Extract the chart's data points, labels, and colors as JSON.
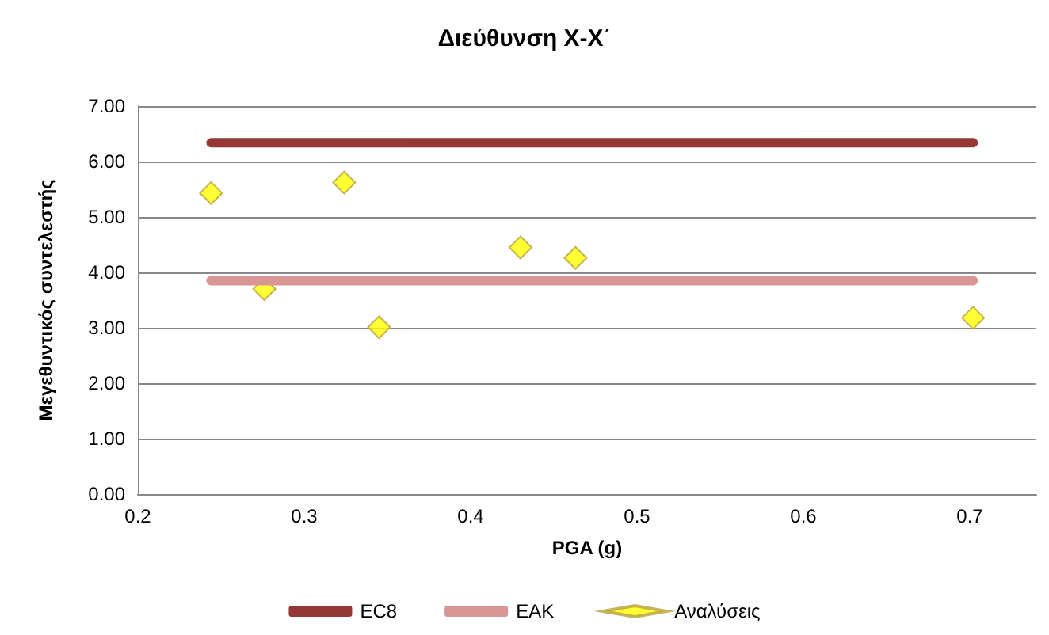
{
  "chart_data": {
    "type": "scatter",
    "title": "Διεύθυνση Χ-Χ΄",
    "xlabel": "PGA (g)",
    "ylabel": "Μεγεθυντικός συντελεστής",
    "xlim": [
      0.2,
      0.74
    ],
    "xticks": [
      0.2,
      0.3,
      0.4,
      0.5,
      0.6,
      0.7
    ],
    "ylim": [
      0,
      7
    ],
    "yticks": [
      {
        "value": 0,
        "label": "0.00"
      },
      {
        "value": 1,
        "label": "1.00"
      },
      {
        "value": 2,
        "label": "2.00"
      },
      {
        "value": 3,
        "label": "3.00"
      },
      {
        "value": 4,
        "label": "4.00"
      },
      {
        "value": 5,
        "label": "5.00"
      },
      {
        "value": 6,
        "label": "6.00"
      },
      {
        "value": 7,
        "label": "7.00"
      }
    ],
    "grid": "y",
    "legend": "bottom",
    "series": [
      {
        "name": "EC8",
        "type": "line",
        "marker": "none",
        "color": "#953735",
        "x": [
          0.244,
          0.702
        ],
        "values": [
          6.34,
          6.34
        ]
      },
      {
        "name": "ΕΑΚ",
        "type": "line",
        "marker": "none",
        "color": "#d99694",
        "x": [
          0.244,
          0.702
        ],
        "values": [
          3.85,
          3.85
        ]
      },
      {
        "name": "Αναλύσεις",
        "marker": "diamond",
        "color": "#ffff00",
        "x": [
          0.244,
          0.276,
          0.324,
          0.345,
          0.43,
          0.463,
          0.702
        ],
        "values": [
          5.43,
          3.7,
          5.62,
          3.01,
          4.45,
          4.26,
          3.18
        ]
      }
    ]
  }
}
